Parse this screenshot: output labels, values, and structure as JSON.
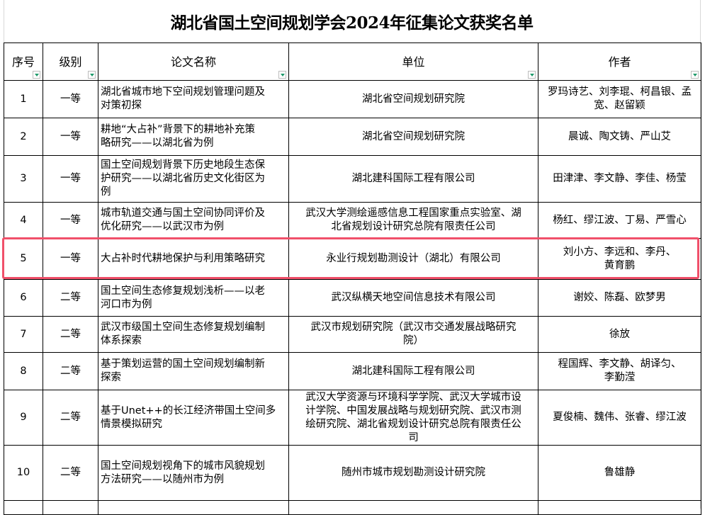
{
  "title": "湖北省国土空间规划学会2024年征集论文获奖名单",
  "headers": [
    "序号",
    "级别",
    "论文名称",
    "单位",
    "作者"
  ],
  "highlight_color": "#f0506a",
  "rows": [
    {
      "no": "1",
      "level": "一等",
      "paper": "湖北省城市地下空间规划管理问题及\n对策初探",
      "org": "湖北省空间规划研究院",
      "authors": "罗玛诗艺、刘李琨、柯昌银、孟\n宽、赵留颖"
    },
    {
      "no": "2",
      "level": "一等",
      "paper": "耕地“大占补”背景下的耕地补充策\n略研究——以湖北省为例",
      "org": "湖北省空间规划研究院",
      "authors": "晨诚、陶文铸、严山艾"
    },
    {
      "no": "3",
      "level": "一等",
      "paper": "国土空间规划背景下历史地段生态保\n护研究——以湖北省历史文化街区为\n例",
      "org": "湖北建科国际工程有限公司",
      "authors": "田津津、李文静、李佳、杨莹"
    },
    {
      "no": "4",
      "level": "一等",
      "paper": "城市轨道交通与国土空间协同评价及\n优化研究——以武汉市为例",
      "org": "武汉大学测绘遥感信息工程国家重点实验室、湖\n北省规划设计研究总院有限责任公司",
      "authors": "杨红、缪江波、丁易、严雪心"
    },
    {
      "no": "5",
      "level": "一等",
      "paper": "大占补时代耕地保护与利用策略研究",
      "org": "永业行规划勘测设计（湖北）有限公司",
      "authors": "刘小方、李远和、李丹、\n黄育鹏"
    },
    {
      "no": "6",
      "level": "二等",
      "paper": "国土空间生态修复规划浅析——以老\n河口市为例",
      "org": "武汉纵横天地空间信息技术有限公司",
      "authors": "谢姣、陈磊、欧梦男"
    },
    {
      "no": "7",
      "level": "二等",
      "paper": "武汉市级国土空间生态修复规划编制\n体系探索",
      "org": "武汉市规划研究院（武汉市交通发展战略研究\n院）",
      "authors": "徐放"
    },
    {
      "no": "8",
      "level": "二等",
      "paper": "基于策划运营的国土空间规划编制新\n探索",
      "org": "湖北建科国际工程有限公司",
      "authors": "程国辉、李文静、胡译匀、\n李勤滢"
    },
    {
      "no": "9",
      "level": "二等",
      "paper": "基于Unet++的长江经济带国土空间多\n情景模拟研究",
      "org": "武汉大学资源与环境科学学院、武汉大学城市设\n计学院、中国发展战略与规划研究院、武汉市测\n绘研究院、湖北省规划设计研究总院有限责任公\n司",
      "authors": "夏俊楠、魏伟、张睿、缪江波"
    },
    {
      "no": "10",
      "level": "二等",
      "paper": "国土空间规划视角下的城市风貌规划\n方法研究——以随州市为例",
      "org": "随州市城市规划勘测设计研究院",
      "authors": "鲁雄静"
    }
  ]
}
